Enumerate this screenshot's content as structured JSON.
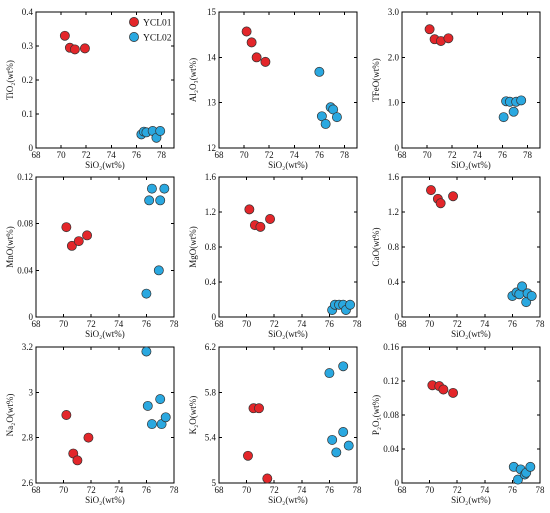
{
  "colors": {
    "ycl01": "#e3262a",
    "ycl02": "#2aa8e0",
    "stroke": "#333333"
  },
  "legend": [
    {
      "name": "YCL01",
      "color_key": "ycl01"
    },
    {
      "name": "YCL02",
      "color_key": "ycl02"
    }
  ],
  "chart_data": [
    {
      "type": "scatter",
      "xlabel": "SiO₂(wt%)",
      "ylabel": "TiO₂(wt%)",
      "xlim": [
        68,
        79
      ],
      "ylim": [
        0,
        0.4
      ],
      "xticks": [
        "68",
        "70",
        "72",
        "74",
        "76",
        "78"
      ],
      "yticks": [
        "0",
        "0.1",
        "0.2",
        "0.3",
        "0.4"
      ],
      "series": [
        {
          "name": "YCL01",
          "x": [
            70.3,
            70.7,
            71.1,
            71.9
          ],
          "y": [
            0.33,
            0.295,
            0.29,
            0.293
          ]
        },
        {
          "name": "YCL02",
          "x": [
            76.4,
            76.6,
            76.8,
            77.3,
            77.6,
            77.9
          ],
          "y": [
            0.04,
            0.048,
            0.046,
            0.05,
            0.03,
            0.05
          ]
        }
      ]
    },
    {
      "type": "scatter",
      "xlabel": "SiO₂(wt%)",
      "ylabel": "Al₂O₃(wt%)",
      "xlim": [
        68,
        79
      ],
      "ylim": [
        12,
        15
      ],
      "xticks": [
        "68",
        "70",
        "72",
        "74",
        "76",
        "78"
      ],
      "yticks": [
        "12",
        "13",
        "14",
        "15"
      ],
      "series": [
        {
          "name": "YCL01",
          "x": [
            70.2,
            70.6,
            71.0,
            71.7
          ],
          "y": [
            14.57,
            14.33,
            14.0,
            13.9
          ]
        },
        {
          "name": "YCL02",
          "x": [
            76.0,
            76.2,
            76.5,
            76.9,
            77.1,
            77.4
          ],
          "y": [
            13.68,
            12.7,
            12.53,
            12.9,
            12.85,
            12.68
          ]
        }
      ]
    },
    {
      "type": "scatter",
      "xlabel": "SiO₂(wt%)",
      "ylabel": "TFeO(wt%)",
      "xlim": [
        68,
        79
      ],
      "ylim": [
        0,
        3
      ],
      "xticks": [
        "68",
        "70",
        "72",
        "74",
        "76",
        "78"
      ],
      "yticks": [
        "0",
        "1.0",
        "2.0",
        "3.0"
      ],
      "series": [
        {
          "name": "YCL01",
          "x": [
            70.2,
            70.6,
            71.1,
            71.7
          ],
          "y": [
            2.62,
            2.4,
            2.36,
            2.42
          ]
        },
        {
          "name": "YCL02",
          "x": [
            76.1,
            76.3,
            76.6,
            76.9,
            77.1,
            77.5
          ],
          "y": [
            0.68,
            1.03,
            1.02,
            0.8,
            1.02,
            1.05
          ]
        }
      ]
    },
    {
      "type": "scatter",
      "xlabel": "SiO₂(wt%)",
      "ylabel": "MnO(wt%)",
      "xlim": [
        68,
        78
      ],
      "ylim": [
        0,
        0.12
      ],
      "xticks": [
        "68",
        "70",
        "72",
        "74",
        "76",
        "78"
      ],
      "yticks": [
        "0",
        "0.04",
        "0.08",
        "0.12"
      ],
      "series": [
        {
          "name": "YCL01",
          "x": [
            70.2,
            70.6,
            71.1,
            71.7
          ],
          "y": [
            0.077,
            0.061,
            0.065,
            0.07
          ]
        },
        {
          "name": "YCL02",
          "x": [
            76.0,
            76.2,
            76.4,
            76.9,
            77.0,
            77.3
          ],
          "y": [
            0.02,
            0.1,
            0.11,
            0.04,
            0.1,
            0.11
          ]
        }
      ]
    },
    {
      "type": "scatter",
      "xlabel": "SiO₂(wt%)",
      "ylabel": "MgO(wt%)",
      "xlim": [
        68,
        78
      ],
      "ylim": [
        0,
        1.6
      ],
      "xticks": [
        "68",
        "70",
        "72",
        "74",
        "76",
        "78"
      ],
      "yticks": [
        "0",
        "0.4",
        "0.8",
        "1.2",
        "1.6"
      ],
      "series": [
        {
          "name": "YCL01",
          "x": [
            70.2,
            70.6,
            71.0,
            71.7
          ],
          "y": [
            1.23,
            1.05,
            1.03,
            1.12
          ]
        },
        {
          "name": "YCL02",
          "x": [
            76.2,
            76.4,
            76.7,
            77.0,
            77.2,
            77.5
          ],
          "y": [
            0.08,
            0.14,
            0.14,
            0.14,
            0.08,
            0.14
          ]
        }
      ]
    },
    {
      "type": "scatter",
      "xlabel": "SiO₂(wt%)",
      "ylabel": "CaO(wt%)",
      "xlim": [
        68,
        78
      ],
      "ylim": [
        0,
        1.6
      ],
      "xticks": [
        "68",
        "70",
        "72",
        "74",
        "76",
        "78"
      ],
      "yticks": [
        "0",
        "0.4",
        "0.8",
        "1.2",
        "1.6"
      ],
      "series": [
        {
          "name": "YCL01",
          "x": [
            70.1,
            70.6,
            70.8,
            71.7
          ],
          "y": [
            1.45,
            1.35,
            1.3,
            1.38
          ]
        },
        {
          "name": "YCL02",
          "x": [
            76.0,
            76.3,
            76.5,
            76.7,
            77.0,
            77.1,
            77.4
          ],
          "y": [
            0.24,
            0.28,
            0.26,
            0.35,
            0.17,
            0.27,
            0.24
          ]
        }
      ]
    },
    {
      "type": "scatter",
      "xlabel": "SiO₂(wt%)",
      "ylabel": "Na₂O(wt%)",
      "xlim": [
        68,
        78
      ],
      "ylim": [
        2.6,
        3.2
      ],
      "xticks": [
        "68",
        "70",
        "72",
        "74",
        "76",
        "78"
      ],
      "yticks": [
        "2.6",
        "2.8",
        "3",
        "3.2"
      ],
      "series": [
        {
          "name": "YCL01",
          "x": [
            70.2,
            70.7,
            71.0,
            71.8
          ],
          "y": [
            2.9,
            2.73,
            2.7,
            2.8
          ]
        },
        {
          "name": "YCL02",
          "x": [
            76.0,
            76.1,
            76.4,
            77.0,
            77.1,
            77.4
          ],
          "y": [
            3.18,
            2.94,
            2.86,
            2.97,
            2.86,
            2.89
          ]
        }
      ]
    },
    {
      "type": "scatter",
      "xlabel": "SiO₂(wt%)",
      "ylabel": "K₂O(wt%)",
      "xlim": [
        68,
        78
      ],
      "ylim": [
        5,
        6.2
      ],
      "xticks": [
        "68",
        "70",
        "72",
        "74",
        "76",
        "78"
      ],
      "yticks": [
        "5",
        "5.4",
        "5.8",
        "6.2"
      ],
      "series": [
        {
          "name": "YCL01",
          "x": [
            70.1,
            70.5,
            70.9,
            71.5
          ],
          "y": [
            5.24,
            5.66,
            5.66,
            5.04
          ]
        },
        {
          "name": "YCL02",
          "x": [
            76.0,
            76.2,
            76.5,
            77.0,
            77.0,
            77.4
          ],
          "y": [
            5.97,
            5.38,
            5.27,
            6.03,
            5.45,
            5.33
          ]
        }
      ]
    },
    {
      "type": "scatter",
      "xlabel": "SiO₂(wt%)",
      "ylabel": "P₂O₅(wt%)",
      "xlim": [
        68,
        78
      ],
      "ylim": [
        0,
        0.16
      ],
      "xticks": [
        "68",
        "70",
        "72",
        "74",
        "76",
        "78"
      ],
      "yticks": [
        "0",
        "0.04",
        "0.08",
        "0.12",
        "0.16"
      ],
      "series": [
        {
          "name": "YCL01",
          "x": [
            70.2,
            70.7,
            71.0,
            71.7
          ],
          "y": [
            0.115,
            0.114,
            0.11,
            0.106
          ]
        },
        {
          "name": "YCL02",
          "x": [
            76.1,
            76.4,
            76.6,
            76.9,
            77.0,
            77.3
          ],
          "y": [
            0.019,
            0.004,
            0.016,
            0.01,
            0.012,
            0.019
          ]
        }
      ]
    }
  ]
}
